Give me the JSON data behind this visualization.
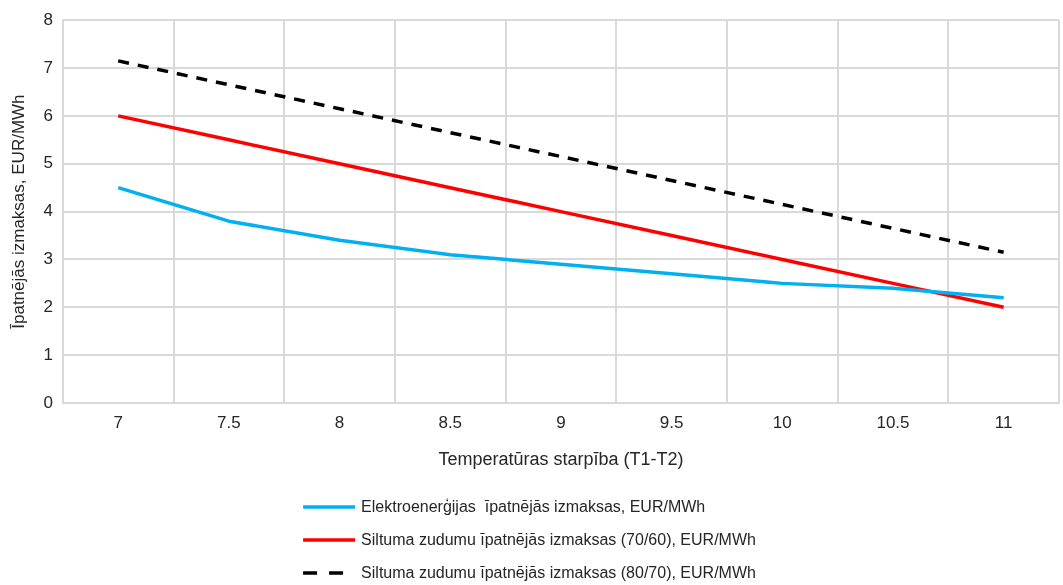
{
  "chart_data": {
    "type": "line",
    "xlabel": "Temperatūras starpība (T1-T2)",
    "ylabel": "Īpatnējās izmaksas, EUR/MWh",
    "categories": [
      "7",
      "7.5",
      "8",
      "8.5",
      "9",
      "9.5",
      "10",
      "10.5",
      "11"
    ],
    "ylim": [
      0,
      8
    ],
    "yticks": [
      0,
      1,
      2,
      3,
      4,
      5,
      6,
      7,
      8
    ],
    "grid": true,
    "legend": "bottom",
    "marker": "none",
    "series": [
      {
        "name": "Elektroenerģijas  īpatnējās izmaksas, EUR/MWh",
        "color": "#00b0f0",
        "line_style": "solid",
        "values": [
          4.5,
          3.8,
          3.4,
          3.1,
          2.9,
          2.7,
          2.5,
          2.4,
          2.2
        ]
      },
      {
        "name": "Siltuma zudumu īpatnējās izmaksas (70/60), EUR/MWh",
        "color": "#ff0000",
        "line_style": "solid",
        "values": [
          6,
          5.5,
          5,
          4.5,
          4,
          3.5,
          3,
          2.5,
          2
        ]
      },
      {
        "name": "Siltuma zudumu īpatnējās izmaksas (80/70), EUR/MWh",
        "color": "#000000",
        "line_style": "dashed",
        "values": [
          7.15,
          6.65,
          6.15,
          5.65,
          5.15,
          4.65,
          4.15,
          3.65,
          3.15
        ]
      }
    ]
  }
}
